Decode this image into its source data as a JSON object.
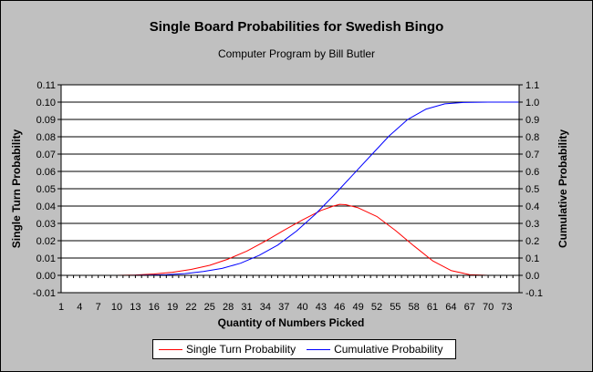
{
  "chart_data": {
    "type": "line",
    "title": "Single Board Probabilities for Swedish Bingo",
    "subtitle": "Computer Program by Bill Butler",
    "xlabel": "Quantity of Numbers Picked",
    "ylabel_left": "Single Turn Probability",
    "ylabel_right": "Cumulative Probability",
    "x_ticks": [
      "1",
      "4",
      "7",
      "10",
      "13",
      "16",
      "19",
      "22",
      "25",
      "28",
      "31",
      "34",
      "37",
      "40",
      "43",
      "46",
      "49",
      "52",
      "55",
      "58",
      "61",
      "64",
      "67",
      "70",
      "73"
    ],
    "x_range": [
      1,
      75
    ],
    "y_left_range": [
      -0.01,
      0.11
    ],
    "y_left_ticks": [
      "-0.01",
      "0.00",
      "0.01",
      "0.02",
      "0.03",
      "0.04",
      "0.05",
      "0.06",
      "0.07",
      "0.08",
      "0.09",
      "0.10",
      "0.11"
    ],
    "y_right_range": [
      -0.1,
      1.1
    ],
    "y_right_ticks": [
      "-0.1",
      "0.0",
      "0.1",
      "0.2",
      "0.3",
      "0.4",
      "0.5",
      "0.6",
      "0.7",
      "0.8",
      "0.9",
      "1.0",
      "1.1"
    ],
    "grid": "horizontal",
    "legend_position": "bottom",
    "series": [
      {
        "name": "Single Turn Probability",
        "axis": "left",
        "color": "#ff0000",
        "x": [
          1,
          10,
          13,
          16,
          19,
          22,
          25,
          28,
          31,
          34,
          37,
          40,
          43,
          45,
          46,
          47,
          49,
          52,
          55,
          58,
          61,
          64,
          67,
          70,
          75
        ],
        "y": [
          0,
          0,
          0.0002,
          0.0008,
          0.0018,
          0.0034,
          0.0058,
          0.0094,
          0.014,
          0.0198,
          0.026,
          0.032,
          0.0375,
          0.04,
          0.041,
          0.0408,
          0.039,
          0.034,
          0.026,
          0.017,
          0.0085,
          0.0028,
          0.0004,
          0,
          0
        ]
      },
      {
        "name": "Cumulative Probability",
        "axis": "right",
        "color": "#0000ff",
        "x": [
          1,
          12,
          15,
          18,
          21,
          24,
          27,
          30,
          33,
          36,
          39,
          42,
          45,
          48,
          51,
          54,
          57,
          60,
          63,
          66,
          70,
          75
        ],
        "y": [
          0,
          0,
          0.001,
          0.004,
          0.01,
          0.022,
          0.04,
          0.07,
          0.115,
          0.175,
          0.255,
          0.35,
          0.46,
          0.575,
          0.69,
          0.805,
          0.9,
          0.96,
          0.99,
          0.998,
          1.0,
          1.0
        ]
      }
    ]
  }
}
